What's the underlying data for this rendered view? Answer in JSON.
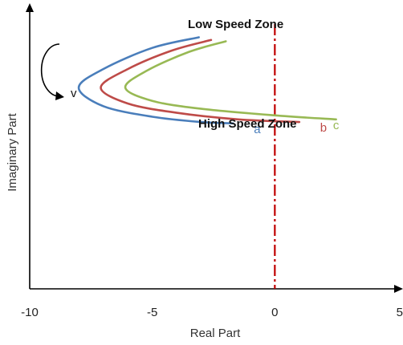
{
  "chart_data": {
    "type": "line",
    "xlabel": "Real Part",
    "ylabel": "Imaginary Part",
    "xlim": [
      -10,
      5
    ],
    "xticks": [
      "-10",
      "-5",
      "0",
      "5"
    ],
    "grid": false,
    "annotations": {
      "low_speed": "Low Speed Zone",
      "high_speed": "High Speed Zone",
      "direction": "v"
    },
    "reference_line": {
      "x": 0,
      "color": "#c00000",
      "style": "dash-dot"
    },
    "series": [
      {
        "name": "a",
        "color": "#4a7ebb",
        "points": [
          [
            -3.1,
            0.95
          ],
          [
            -5.0,
            0.91
          ],
          [
            -7.0,
            0.83
          ],
          [
            -8.0,
            0.76
          ],
          [
            -7.0,
            0.69
          ],
          [
            -5.0,
            0.65
          ],
          [
            -3.0,
            0.63
          ],
          [
            -1.7,
            0.625
          ]
        ]
      },
      {
        "name": "b",
        "color": "#be4b48",
        "points": [
          [
            -2.6,
            0.94
          ],
          [
            -4.2,
            0.9
          ],
          [
            -6.0,
            0.83
          ],
          [
            -7.1,
            0.76
          ],
          [
            -6.0,
            0.7
          ],
          [
            -4.0,
            0.665
          ],
          [
            -1.5,
            0.64
          ],
          [
            1.0,
            0.63
          ]
        ]
      },
      {
        "name": "c",
        "color": "#98b954",
        "points": [
          [
            -2.0,
            0.935
          ],
          [
            -3.5,
            0.895
          ],
          [
            -5.2,
            0.825
          ],
          [
            -6.1,
            0.76
          ],
          [
            -5.0,
            0.71
          ],
          [
            -3.0,
            0.68
          ],
          [
            0.0,
            0.655
          ],
          [
            2.5,
            0.64
          ]
        ]
      }
    ]
  }
}
